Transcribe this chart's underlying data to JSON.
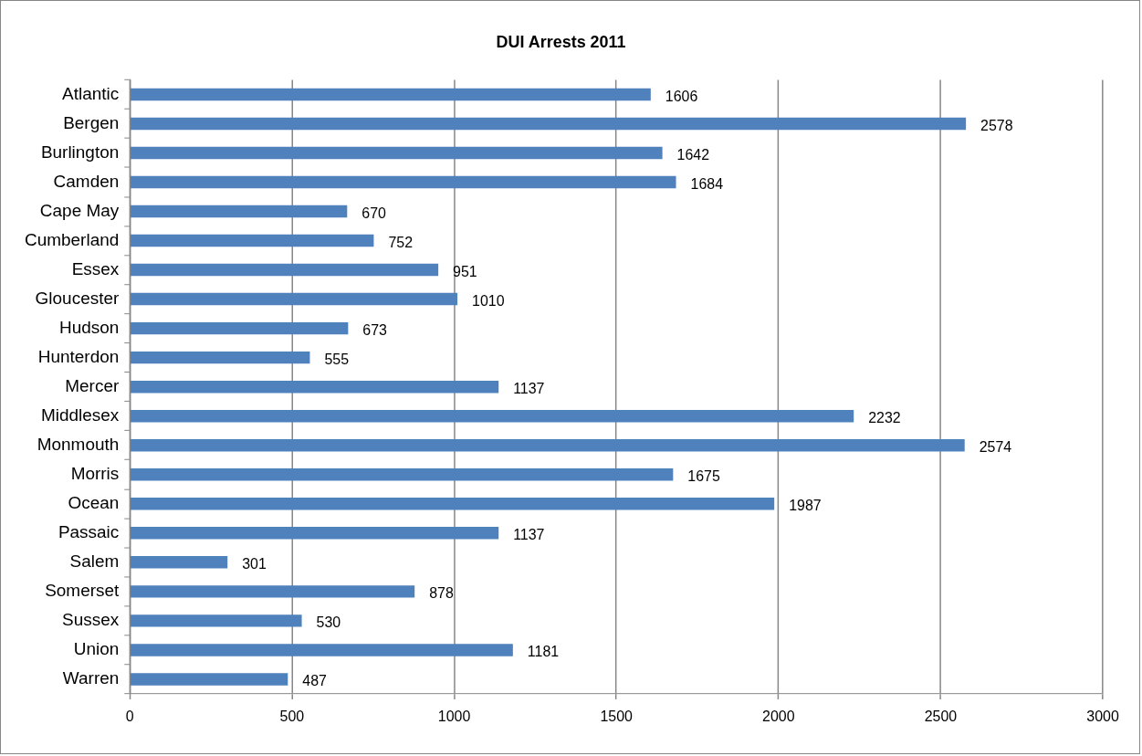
{
  "chart_data": {
    "type": "bar",
    "title": "DUI Arrests 2011",
    "orientation": "horizontal",
    "categories": [
      "Atlantic",
      "Bergen",
      "Burlington",
      "Camden",
      "Cape May",
      "Cumberland",
      "Essex",
      "Gloucester",
      "Hudson",
      "Hunterdon",
      "Mercer",
      "Middlesex",
      "Monmouth",
      "Morris",
      "Ocean",
      "Passaic",
      "Salem",
      "Somerset",
      "Sussex",
      "Union",
      "Warren"
    ],
    "values": [
      1606,
      2578,
      1642,
      1684,
      670,
      752,
      951,
      1010,
      673,
      555,
      1137,
      2232,
      2574,
      1675,
      1987,
      1137,
      301,
      878,
      530,
      1181,
      487
    ],
    "color": "#4f81bd",
    "xlim": [
      0,
      3000
    ],
    "xticks": [
      0,
      500,
      1000,
      1500,
      2000,
      2500,
      3000
    ],
    "grid": "x",
    "legend": false,
    "data_labels": true
  }
}
